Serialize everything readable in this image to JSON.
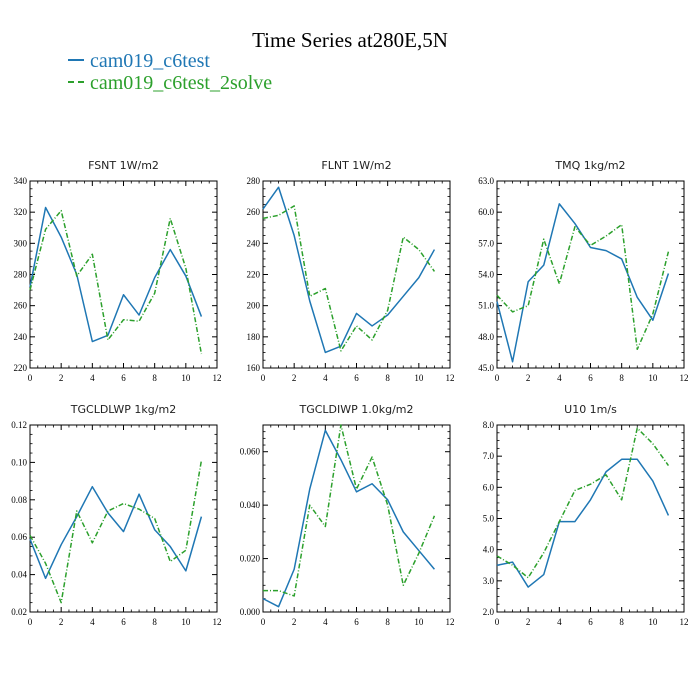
{
  "title": "Time Series at280E,5N",
  "colors": {
    "series1": "#1f77b4",
    "series2": "#2ca02c"
  },
  "legend": [
    {
      "name": "cam019_c6test"
    },
    {
      "name": "cam019_c6test_2solve"
    }
  ],
  "chart_data": [
    {
      "type": "line",
      "title": "FSNT   1W/m2",
      "xlim": [
        0,
        12
      ],
      "ylim": [
        220,
        340
      ],
      "xticks": [
        0,
        2,
        4,
        6,
        8,
        10,
        12
      ],
      "yticks": [
        220,
        240,
        260,
        280,
        300,
        320,
        340
      ],
      "ytick_labels": [
        "220",
        "240",
        "260",
        "280",
        "300",
        "320",
        "340"
      ],
      "x": [
        0,
        1,
        2,
        3,
        4,
        5,
        6,
        7,
        8,
        9,
        10,
        11
      ],
      "series": [
        {
          "name": "cam019_c6test",
          "values": [
            272,
            323,
            304,
            280,
            237,
            241,
            267,
            254,
            278,
            296,
            279,
            253
          ]
        },
        {
          "name": "cam019_c6test_2solve",
          "values": [
            270,
            309,
            321,
            279,
            293,
            238,
            251,
            250,
            268,
            316,
            284,
            229
          ]
        }
      ]
    },
    {
      "type": "line",
      "title": "FLNT   1W/m2",
      "xlim": [
        0,
        12
      ],
      "ylim": [
        160,
        280
      ],
      "xticks": [
        0,
        2,
        4,
        6,
        8,
        10,
        12
      ],
      "yticks": [
        160,
        180,
        200,
        220,
        240,
        260,
        280
      ],
      "ytick_labels": [
        "160",
        "180",
        "200",
        "220",
        "240",
        "260",
        "280"
      ],
      "x": [
        0,
        1,
        2,
        3,
        4,
        5,
        6,
        7,
        8,
        9,
        10,
        11
      ],
      "series": [
        {
          "name": "cam019_c6test",
          "values": [
            262,
            276,
            245,
            203,
            170,
            174,
            195,
            187,
            194,
            206,
            218,
            236
          ]
        },
        {
          "name": "cam019_c6test_2solve",
          "values": [
            256,
            258,
            264,
            206,
            211,
            171,
            187,
            178,
            197,
            244,
            236,
            222
          ]
        }
      ]
    },
    {
      "type": "line",
      "title": "TMQ   1kg/m2",
      "xlim": [
        0,
        12
      ],
      "ylim": [
        45,
        63
      ],
      "xticks": [
        0,
        2,
        4,
        6,
        8,
        10,
        12
      ],
      "yticks": [
        45,
        48,
        51,
        54,
        57,
        60,
        63
      ],
      "ytick_labels": [
        "45.0",
        "48.0",
        "51.0",
        "54.0",
        "57.0",
        "60.0",
        "63.0"
      ],
      "x": [
        0,
        1,
        2,
        3,
        4,
        5,
        6,
        7,
        8,
        9,
        10,
        11
      ],
      "series": [
        {
          "name": "cam019_c6test",
          "values": [
            51.4,
            45.6,
            53.3,
            54.9,
            60.8,
            58.9,
            56.6,
            56.3,
            55.5,
            51.8,
            49.6,
            54.1
          ]
        },
        {
          "name": "cam019_c6test_2solve",
          "values": [
            52.0,
            50.4,
            51.0,
            57.4,
            53.1,
            58.6,
            56.8,
            57.7,
            58.8,
            46.8,
            50.2,
            56.2
          ]
        }
      ]
    },
    {
      "type": "line",
      "title": "TGCLDLWP   1kg/m2",
      "xlim": [
        0,
        12
      ],
      "ylim": [
        0.02,
        0.12
      ],
      "xticks": [
        0,
        2,
        4,
        6,
        8,
        10,
        12
      ],
      "yticks": [
        0.02,
        0.04,
        0.06,
        0.08,
        0.1,
        0.12
      ],
      "ytick_labels": [
        "0.02",
        "0.04",
        "0.06",
        "0.08",
        "0.10",
        "0.12"
      ],
      "x": [
        0,
        1,
        2,
        3,
        4,
        5,
        6,
        7,
        8,
        9,
        10,
        11
      ],
      "series": [
        {
          "name": "cam019_c6test",
          "values": [
            0.059,
            0.038,
            0.056,
            0.071,
            0.087,
            0.073,
            0.063,
            0.083,
            0.064,
            0.055,
            0.042,
            0.071
          ]
        },
        {
          "name": "cam019_c6test_2solve",
          "values": [
            0.061,
            0.046,
            0.025,
            0.074,
            0.057,
            0.074,
            0.078,
            0.075,
            0.07,
            0.047,
            0.053,
            0.101
          ]
        }
      ]
    },
    {
      "type": "line",
      "title": "TGCLDIWP   1.0kg/m2",
      "xlim": [
        0,
        12
      ],
      "ylim": [
        0,
        0.07
      ],
      "xticks": [
        0,
        2,
        4,
        6,
        8,
        10,
        12
      ],
      "yticks": [
        0,
        0.02,
        0.04,
        0.06
      ],
      "ytick_labels": [
        "0.000",
        "0.020",
        "0.040",
        "0.060"
      ],
      "x": [
        0,
        1,
        2,
        3,
        4,
        5,
        6,
        7,
        8,
        9,
        10,
        11
      ],
      "series": [
        {
          "name": "cam019_c6test",
          "values": [
            0.005,
            0.002,
            0.016,
            0.046,
            0.068,
            0.057,
            0.045,
            0.048,
            0.042,
            0.03,
            0.023,
            0.016
          ]
        },
        {
          "name": "cam019_c6test_2solve",
          "values": [
            0.008,
            0.008,
            0.006,
            0.04,
            0.032,
            0.07,
            0.046,
            0.058,
            0.04,
            0.01,
            0.022,
            0.036
          ]
        }
      ]
    },
    {
      "type": "line",
      "title": "U10   1m/s",
      "xlim": [
        0,
        12
      ],
      "ylim": [
        2,
        8
      ],
      "xticks": [
        0,
        2,
        4,
        6,
        8,
        10,
        12
      ],
      "yticks": [
        2,
        3,
        4,
        5,
        6,
        7,
        8
      ],
      "ytick_labels": [
        "2.0",
        "3.0",
        "4.0",
        "5.0",
        "6.0",
        "7.0",
        "8.0"
      ],
      "x": [
        0,
        1,
        2,
        3,
        4,
        5,
        6,
        7,
        8,
        9,
        10,
        11
      ],
      "series": [
        {
          "name": "cam019_c6test",
          "values": [
            3.5,
            3.6,
            2.8,
            3.2,
            4.9,
            4.9,
            5.6,
            6.5,
            6.9,
            6.9,
            6.2,
            5.1
          ]
        },
        {
          "name": "cam019_c6test_2solve",
          "values": [
            3.8,
            3.5,
            3.1,
            3.9,
            4.9,
            5.9,
            6.1,
            6.4,
            5.6,
            7.9,
            7.4,
            6.7
          ]
        }
      ]
    }
  ]
}
